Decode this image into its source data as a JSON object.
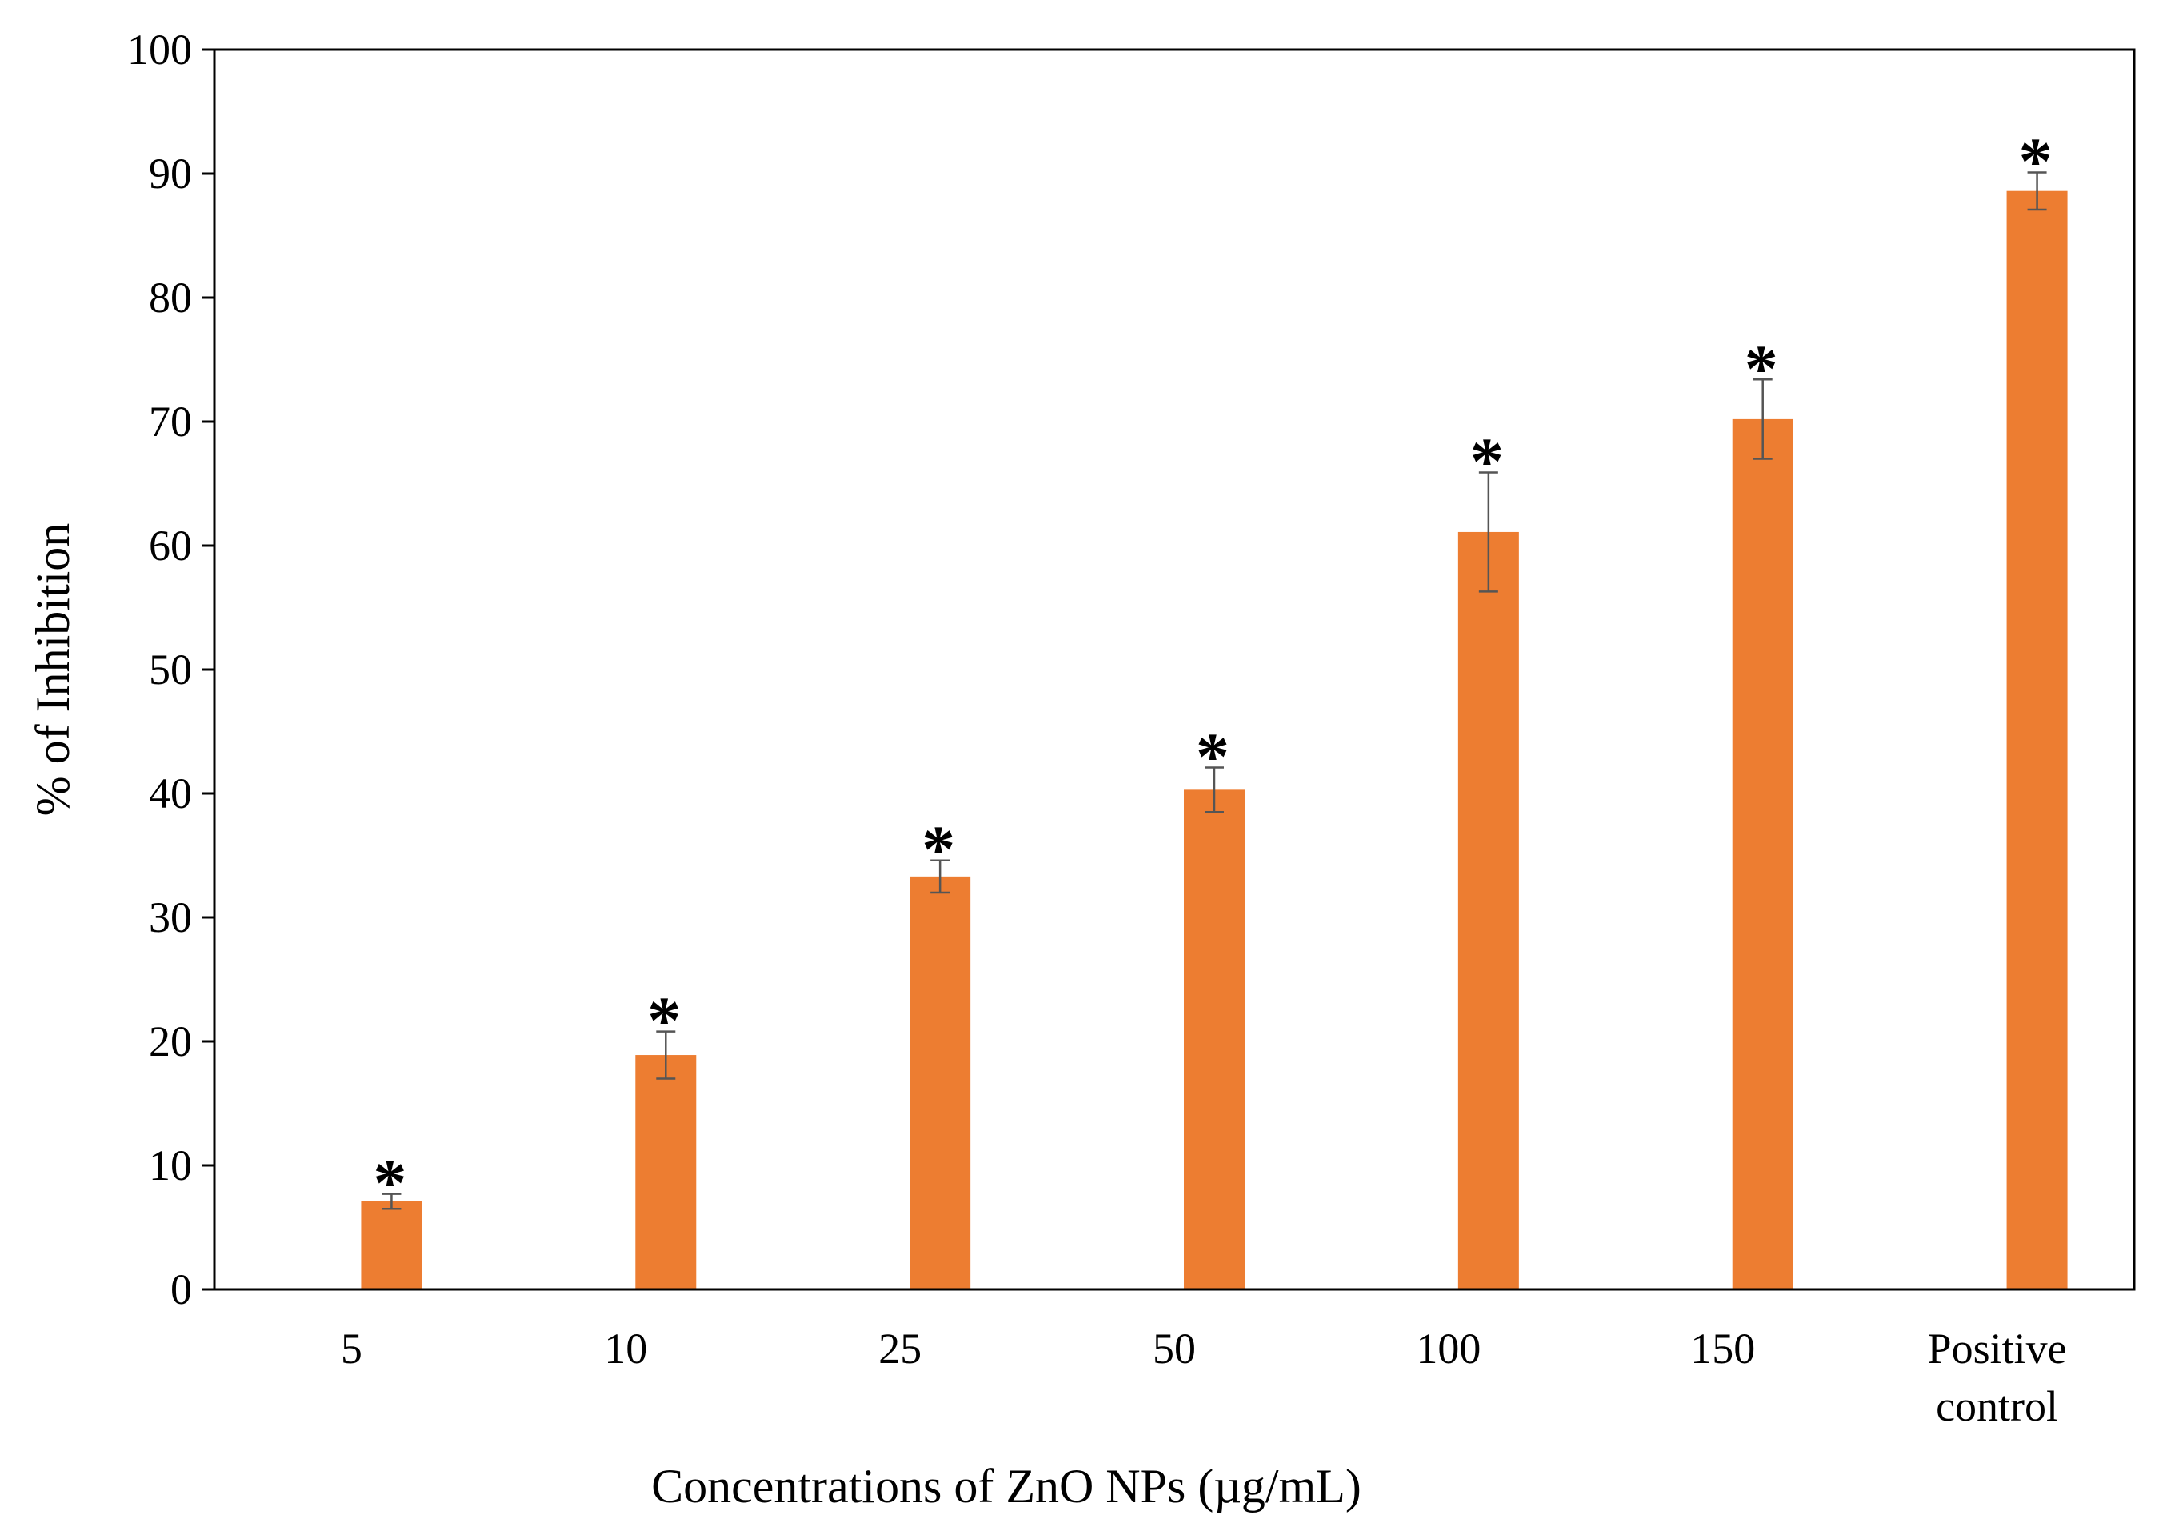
{
  "chart_data": {
    "type": "bar",
    "title": "",
    "xlabel": "Concentrations of ZnO NPs (µg/mL)",
    "ylabel": "% of Inhibition",
    "categories": [
      [
        "5"
      ],
      [
        "10"
      ],
      [
        "25"
      ],
      [
        "50"
      ],
      [
        "100"
      ],
      [
        "150"
      ],
      [
        "Positive",
        "control"
      ]
    ],
    "values": [
      7.1,
      18.9,
      33.3,
      40.3,
      61.1,
      70.2,
      88.6
    ],
    "errors": [
      0.6,
      1.9,
      1.3,
      1.8,
      4.8,
      3.2,
      1.5
    ],
    "annotations": [
      "*",
      "*",
      "*",
      "*",
      "*",
      "*",
      "*"
    ],
    "ylim": [
      0,
      100
    ],
    "yticks": [
      0,
      10,
      20,
      30,
      40,
      50,
      60,
      70,
      80,
      90,
      100
    ],
    "grid": false,
    "legend": "none",
    "colors": {
      "bar": "#ED7D31",
      "axis": "#000000",
      "error_bar": "#555555"
    }
  }
}
